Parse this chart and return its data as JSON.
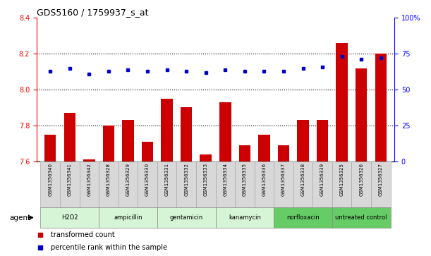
{
  "title": "GDS5160 / 1759937_s_at",
  "samples": [
    "GSM1356340",
    "GSM1356341",
    "GSM1356342",
    "GSM1356328",
    "GSM1356329",
    "GSM1356330",
    "GSM1356331",
    "GSM1356332",
    "GSM1356333",
    "GSM1356334",
    "GSM1356335",
    "GSM1356336",
    "GSM1356337",
    "GSM1356338",
    "GSM1356339",
    "GSM1356325",
    "GSM1356326",
    "GSM1356327"
  ],
  "bar_values": [
    7.75,
    7.87,
    7.61,
    7.8,
    7.83,
    7.71,
    7.95,
    7.9,
    7.64,
    7.93,
    7.69,
    7.75,
    7.69,
    7.83,
    7.83,
    8.26,
    8.12,
    8.2
  ],
  "percentile_values": [
    63,
    65,
    61,
    63,
    64,
    63,
    64,
    63,
    62,
    64,
    63,
    63,
    63,
    65,
    66,
    73,
    71,
    72
  ],
  "groups": [
    {
      "name": "H2O2",
      "count": 3,
      "color": "#d6f5d6"
    },
    {
      "name": "ampicillin",
      "count": 3,
      "color": "#d6f5d6"
    },
    {
      "name": "gentamicin",
      "count": 3,
      "color": "#d6f5d6"
    },
    {
      "name": "kanamycin",
      "count": 3,
      "color": "#d6f5d6"
    },
    {
      "name": "norfloxacin",
      "count": 3,
      "color": "#66cc66"
    },
    {
      "name": "untreated control",
      "count": 3,
      "color": "#66cc66"
    }
  ],
  "ylim_left": [
    7.6,
    8.4
  ],
  "ylim_right": [
    0,
    100
  ],
  "yticks_left": [
    7.6,
    7.8,
    8.0,
    8.2,
    8.4
  ],
  "yticks_right": [
    0,
    25,
    50,
    75,
    100
  ],
  "bar_color": "#cc0000",
  "dot_color": "#0000cc",
  "bar_bottom": 7.6,
  "agent_label": "agent",
  "legend_bar": "transformed count",
  "legend_dot": "percentile rank within the sample",
  "hlines": [
    7.8,
    8.0,
    8.2
  ]
}
